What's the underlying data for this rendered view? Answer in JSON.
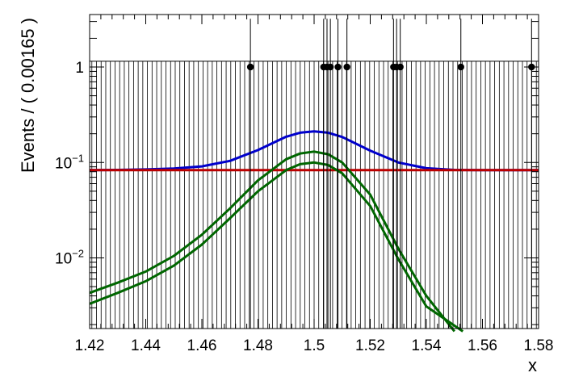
{
  "chart_data": {
    "type": "line",
    "title": "",
    "xlabel": "x",
    "ylabel": "Events / ( 0.00165 )",
    "xlim": [
      1.42,
      1.58
    ],
    "ylim_log10": [
      -2.74,
      0.55
    ],
    "y_scale": "log",
    "grid": false,
    "x_ticks": [
      {
        "value": 1.42,
        "label": "1.42"
      },
      {
        "value": 1.44,
        "label": "1.44"
      },
      {
        "value": 1.46,
        "label": "1.46"
      },
      {
        "value": 1.48,
        "label": "1.48"
      },
      {
        "value": 1.5,
        "label": "1.5"
      },
      {
        "value": 1.52,
        "label": "1.52"
      },
      {
        "value": 1.54,
        "label": "1.54"
      },
      {
        "value": 1.56,
        "label": "1.56"
      },
      {
        "value": 1.58,
        "label": "1.58"
      }
    ],
    "y_ticks": [
      {
        "value": 1,
        "base": "1",
        "exp": ""
      },
      {
        "value": 0.1,
        "base": "10",
        "exp": "−1"
      },
      {
        "value": 0.01,
        "base": "10",
        "exp": "−2"
      }
    ],
    "data_points": {
      "x": [
        1.4773,
        1.5034,
        1.5046,
        1.5058,
        1.5085,
        1.5117,
        1.5283,
        1.5294,
        1.5307,
        1.5523,
        1.5775
      ],
      "y": [
        1,
        1,
        1,
        1,
        1,
        1,
        1,
        1,
        1,
        1,
        1
      ],
      "err_high": 3.2,
      "color": "#000000"
    },
    "empty_bins": {
      "x_start": 1.4208,
      "width": 0.00165,
      "count": 97,
      "y_high": 1.15,
      "color": "#000000"
    },
    "series": [
      {
        "color": "#0000cc",
        "x": [
          1.42,
          1.43,
          1.44,
          1.45,
          1.46,
          1.47,
          1.48,
          1.49,
          1.495,
          1.5,
          1.505,
          1.51,
          1.52,
          1.53,
          1.54,
          1.55,
          1.56,
          1.57,
          1.58
        ],
        "y": [
          0.083,
          0.0835,
          0.0845,
          0.0865,
          0.091,
          0.104,
          0.135,
          0.186,
          0.205,
          0.212,
          0.205,
          0.185,
          0.133,
          0.1,
          0.087,
          0.0835,
          0.083,
          0.083,
          0.083
        ]
      },
      {
        "color": "#bb0000",
        "x": [
          1.42,
          1.58
        ],
        "y": [
          0.083,
          0.083
        ]
      },
      {
        "color": "#006600",
        "x": [
          1.42,
          1.43,
          1.44,
          1.45,
          1.46,
          1.47,
          1.48,
          1.49,
          1.495,
          1.5,
          1.505,
          1.51,
          1.52,
          1.53,
          1.54,
          1.55
        ],
        "y": [
          0.0043,
          0.0055,
          0.0072,
          0.0105,
          0.0175,
          0.033,
          0.065,
          0.108,
          0.124,
          0.13,
          0.122,
          0.1,
          0.046,
          0.0125,
          0.004,
          0.0017
        ]
      },
      {
        "color": "#006600",
        "x": [
          1.42,
          1.43,
          1.44,
          1.45,
          1.46,
          1.47,
          1.48,
          1.49,
          1.495,
          1.5,
          1.505,
          1.51,
          1.52,
          1.53,
          1.54,
          1.553
        ],
        "y": [
          0.0033,
          0.0043,
          0.0057,
          0.0083,
          0.0138,
          0.026,
          0.05,
          0.083,
          0.096,
          0.1,
          0.094,
          0.077,
          0.035,
          0.0097,
          0.0031,
          0.0017
        ]
      }
    ]
  }
}
